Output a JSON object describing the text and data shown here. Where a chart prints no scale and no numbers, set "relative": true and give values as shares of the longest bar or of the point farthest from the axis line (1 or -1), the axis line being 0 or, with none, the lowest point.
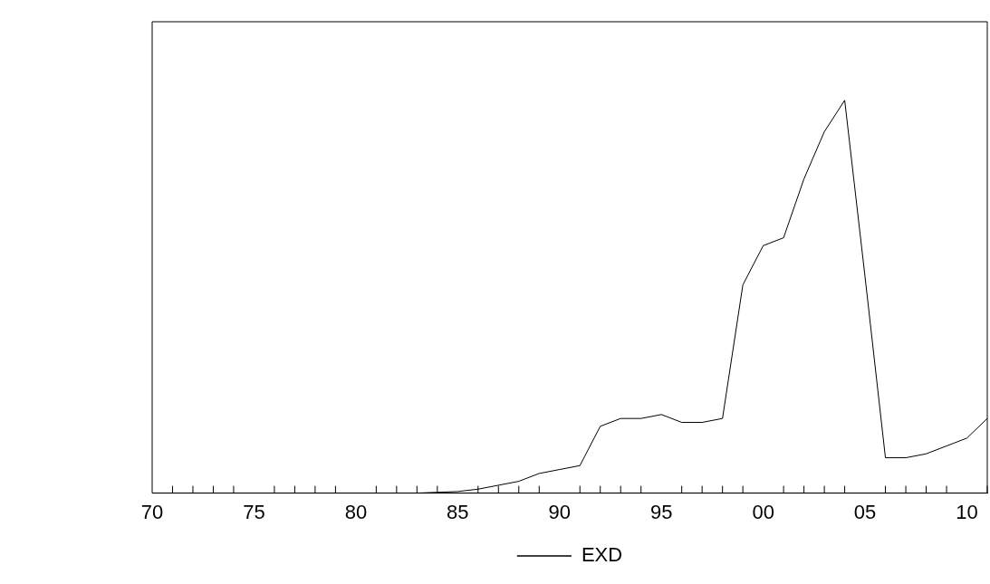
{
  "chart_data": {
    "type": "line",
    "relative": true,
    "x": [
      1970,
      1971,
      1972,
      1973,
      1974,
      1975,
      1976,
      1977,
      1978,
      1979,
      1980,
      1981,
      1982,
      1983,
      1984,
      1985,
      1986,
      1987,
      1988,
      1989,
      1990,
      1991,
      1992,
      1993,
      1994,
      1995,
      1996,
      1997,
      1998,
      1999,
      2000,
      2001,
      2002,
      2003,
      2004,
      2005,
      2006,
      2007,
      2008,
      2009,
      2010,
      2011
    ],
    "series": [
      {
        "name": "EXD",
        "color": "#000000",
        "values": [
          0,
          0,
          0,
          0,
          0,
          0,
          0,
          0,
          0,
          0,
          0,
          0,
          0,
          0,
          0.002,
          0.004,
          0.01,
          0.02,
          0.03,
          0.05,
          0.06,
          0.07,
          0.17,
          0.19,
          0.19,
          0.2,
          0.18,
          0.18,
          0.19,
          0.53,
          0.63,
          0.65,
          0.8,
          0.92,
          1,
          0.55,
          0.09,
          0.09,
          0.1,
          0.12,
          0.14,
          0.19
        ]
      }
    ],
    "xlim": [
      1970,
      2011
    ],
    "xticks": [
      {
        "value": 1970,
        "label": "70"
      },
      {
        "value": 1975,
        "label": "75"
      },
      {
        "value": 1980,
        "label": "80"
      },
      {
        "value": 1985,
        "label": "85"
      },
      {
        "value": 1990,
        "label": "90"
      },
      {
        "value": 1995,
        "label": "95"
      },
      {
        "value": 2000,
        "label": "00"
      },
      {
        "value": 2005,
        "label": "05"
      },
      {
        "value": 2010,
        "label": "10"
      }
    ],
    "grid": false,
    "legend": "bottom",
    "marker": "none",
    "line_style": "solid"
  }
}
